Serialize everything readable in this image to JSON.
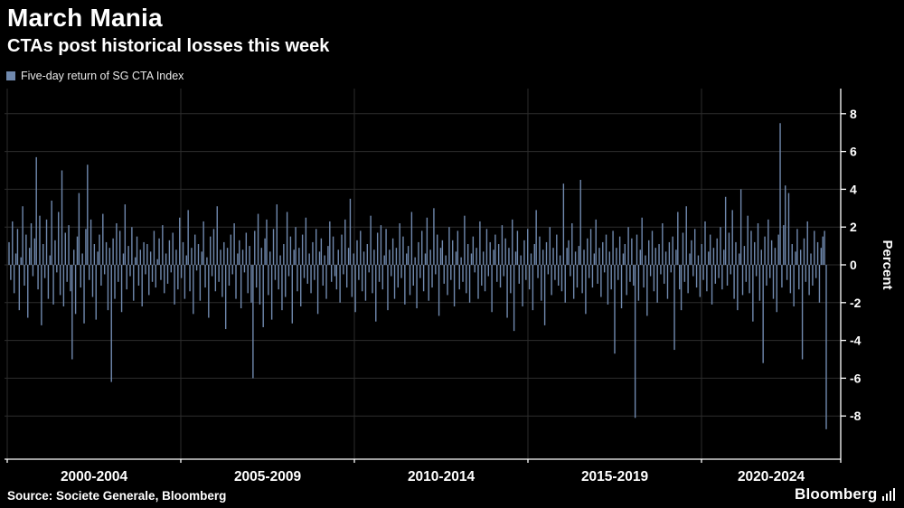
{
  "header": {
    "title": "March Mania",
    "subtitle": "CTAs post historical losses this week"
  },
  "legend": {
    "label": "Five-day return of SG CTA Index",
    "swatch_color": "#7089AE"
  },
  "footer": {
    "source": "Source: Societe Generale, Bloomberg",
    "brand": "Bloomberg"
  },
  "chart_data": {
    "type": "bar",
    "title": "March Mania",
    "subtitle": "CTAs post historical losses this week",
    "series_name": "Five-day return of SG CTA Index",
    "ylabel": "Percent",
    "ylim": [
      -9.5,
      9
    ],
    "yticks": [
      8,
      6,
      4,
      2,
      0,
      -2,
      -4,
      -6,
      -8
    ],
    "x_period_labels": [
      "2000-2004",
      "2005-2009",
      "2010-2014",
      "2015-2019",
      "2020-2024"
    ],
    "x_range_years": [
      2000,
      2025.3
    ],
    "grid": true,
    "legend_position": "top-left",
    "bar_color": "#7089AE",
    "background": "#000000",
    "notable_points": {
      "max_spike_pct": 7.5,
      "final_week_loss_pct": -8.7,
      "feb2018_loss_pct": -8.1
    },
    "values": [
      1.2,
      -0.8,
      2.3,
      -1.5,
      0.6,
      1.9,
      -2.4,
      0.4,
      3.1,
      -1.1,
      1.6,
      -2.8,
      0.9,
      2.2,
      -0.6,
      1.4,
      5.7,
      -1.3,
      2.6,
      -3.2,
      1.1,
      -0.7,
      2.4,
      -1.8,
      0.5,
      3.4,
      -2.1,
      1.3,
      -0.4,
      2.8,
      -1.6,
      5.0,
      -2.2,
      1.7,
      -0.9,
      2.1,
      -1.4,
      -5.0,
      0.8,
      -2.6,
      1.5,
      3.8,
      -1.2,
      0.6,
      -3.1,
      1.9,
      5.3,
      -0.8,
      2.4,
      -1.7,
      1.1,
      -2.9,
      0.7,
      1.6,
      -1.1,
      2.7,
      -0.5,
      1.2,
      -2.4,
      0.9,
      -6.2,
      1.4,
      -1.8,
      2.2,
      -0.9,
      1.8,
      -2.5,
      0.6,
      3.2,
      -1.3,
      1.0,
      -0.6,
      2.0,
      -1.9,
      0.4,
      1.5,
      -1.1,
      0.8,
      -2.2,
      1.2,
      -0.5,
      1.1,
      -1.6,
      0.7,
      -0.9,
      1.8,
      -1.2,
      0.3,
      1.4,
      -0.8,
      2.1,
      -1.5,
      0.6,
      -1.0,
      1.3,
      -0.4,
      1.7,
      -2.1,
      0.8,
      -1.3,
      2.5,
      -0.7,
      1.2,
      -1.8,
      0.5,
      2.9,
      -1.4,
      0.9,
      -2.6,
      1.6,
      -0.3,
      1.1,
      -1.9,
      0.7,
      2.3,
      -1.2,
      0.4,
      -2.8,
      1.5,
      -0.6,
      1.9,
      -1.4,
      3.1,
      -0.9,
      0.8,
      -1.7,
      1.2,
      -3.4,
      0.9,
      -1.1,
      1.6,
      -0.5,
      2.2,
      -1.8,
      0.6,
      1.3,
      -2.3,
      0.8,
      -0.4,
      1.7,
      -1.5,
      1.0,
      -2.0,
      -6.0,
      1.8,
      -1.2,
      2.7,
      -2.1,
      0.9,
      -3.3,
      1.4,
      2.4,
      -1.6,
      0.7,
      -2.9,
      1.9,
      -0.8,
      3.2,
      -1.3,
      0.5,
      -2.4,
      1.1,
      -1.7,
      2.8,
      -0.6,
      1.5,
      -3.1,
      0.8,
      2.0,
      -1.4,
      0.9,
      -2.2,
      1.6,
      -0.7,
      2.5,
      -1.0,
      0.6,
      -1.5,
      1.2,
      -0.8,
      1.9,
      -2.6,
      0.7,
      1.4,
      -1.1,
      0.5,
      -1.8,
      1.0,
      2.3,
      -0.9,
      1.5,
      -0.6,
      -1.3,
      0.8,
      -2.0,
      1.6,
      -0.5,
      2.4,
      -1.2,
      0.9,
      3.5,
      -1.7,
      0.6,
      -2.5,
      1.3,
      -0.8,
      1.8,
      -1.4,
      0.7,
      -1.9,
      1.1,
      -0.4,
      2.6,
      -1.5,
      0.8,
      -3.0,
      1.7,
      -0.9,
      2.1,
      -1.3,
      0.5,
      1.9,
      -2.4,
      0.8,
      -0.6,
      1.4,
      -1.8,
      0.9,
      -1.2,
      2.2,
      -0.7,
      1.5,
      -2.1,
      0.6,
      1.0,
      -1.6,
      2.8,
      -1.1,
      0.4,
      -2.3,
      1.2,
      -0.7,
      1.8,
      -1.4,
      0.6,
      2.5,
      -1.9,
      0.8,
      -1.2,
      3.0,
      -0.5,
      1.6,
      -2.7,
      0.9,
      1.3,
      -1.0,
      0.5,
      -1.6,
      2.0,
      -0.8,
      1.3,
      -2.2,
      0.7,
      1.8,
      -1.3,
      0.4,
      -0.9,
      2.6,
      -1.5,
      1.1,
      -2.0,
      0.6,
      1.5,
      -0.4,
      0.9,
      -1.8,
      2.3,
      -1.1,
      0.7,
      -1.4,
      1.9,
      -0.6,
      1.2,
      -2.5,
      0.8,
      1.6,
      -0.9,
      1.1,
      -1.2,
      2.1,
      -0.6,
      1.4,
      -2.8,
      0.9,
      -1.5,
      2.4,
      -3.5,
      0.7,
      1.8,
      -1.0,
      0.5,
      -2.2,
      1.3,
      -0.8,
      1.9,
      -1.3,
      0.6,
      -2.4,
      1.1,
      2.9,
      -0.7,
      1.5,
      -1.9,
      0.8,
      -3.2,
      1.2,
      -0.5,
      2.0,
      -1.6,
      0.9,
      -0.8,
      1.6,
      -1.1,
      0.5,
      -1.4,
      4.3,
      -2.0,
      0.9,
      1.3,
      -0.6,
      2.2,
      -1.8,
      0.7,
      -1.2,
      1.0,
      4.5,
      -1.5,
      0.8,
      -2.6,
      1.4,
      -0.7,
      1.9,
      -1.2,
      0.6,
      2.4,
      -1.0,
      0.9,
      -1.7,
      1.2,
      -0.4,
      1.6,
      -2.1,
      0.7,
      -1.3,
      1.8,
      -4.7,
      0.9,
      -0.8,
      1.5,
      -2.3,
      0.6,
      1.1,
      -1.6,
      2.0,
      -0.9,
      1.4,
      -1.1,
      -8.1,
      1.6,
      -1.9,
      0.8,
      2.5,
      -1.2,
      0.5,
      -2.7,
      1.3,
      -0.6,
      1.8,
      -1.4,
      0.9,
      -2.0,
      1.1,
      -0.5,
      2.2,
      -1.0,
      0.7,
      -1.8,
      1.2,
      -0.4,
      1.5,
      -4.5,
      0.8,
      2.8,
      -1.3,
      -2.4,
      1.7,
      -0.9,
      3.1,
      -1.5,
      0.6,
      1.3,
      -0.6,
      1.9,
      -1.2,
      0.5,
      -1.7,
      1.1,
      -0.8,
      2.3,
      -1.4,
      0.7,
      1.6,
      -2.1,
      0.9,
      -1.0,
      1.4,
      -0.7,
      2.0,
      -1.3,
      0.8,
      3.6,
      -1.1,
      1.7,
      -0.5,
      2.9,
      -1.8,
      1.2,
      -2.4,
      0.6,
      4.0,
      -1.6,
      1.0,
      -0.9,
      2.6,
      -1.5,
      1.8,
      -3.0,
      1.2,
      -0.6,
      2.2,
      -1.9,
      0.8,
      -5.2,
      1.5,
      -1.1,
      2.4,
      -0.7,
      1.3,
      -1.8,
      0.9,
      -2.5,
      1.6,
      7.5,
      -1.2,
      2.1,
      4.2,
      -0.8,
      3.8,
      -1.5,
      1.1,
      -2.2,
      0.7,
      1.9,
      -1.3,
      0.8,
      -5.0,
      1.4,
      -0.9,
      2.3,
      -1.6,
      0.6,
      -1.1,
      1.8,
      -0.7,
      1.2,
      -2.0,
      0.9,
      1.5,
      1.8,
      -8.7
    ]
  }
}
